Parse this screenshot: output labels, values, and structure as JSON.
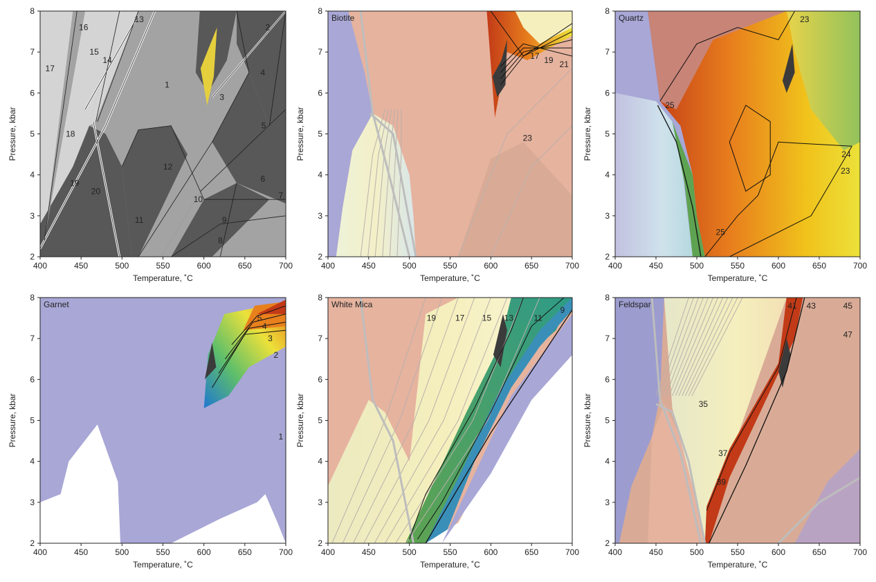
{
  "chart_data": [
    {
      "type": "heatmap",
      "title": "",
      "xlabel": "Temperature, ˚C",
      "ylabel": "Pressure, kbar",
      "xlim": [
        400,
        700
      ],
      "ylim": [
        2,
        8
      ],
      "xticks": [
        400,
        450,
        500,
        550,
        600,
        650,
        700
      ],
      "yticks": [
        2,
        3,
        4,
        5,
        6,
        7,
        8
      ],
      "style": "fields-gray",
      "labels": [
        {
          "text": "1",
          "x": 555,
          "y": 6.2
        },
        {
          "text": "2",
          "x": 678,
          "y": 7.6
        },
        {
          "text": "3",
          "x": 622,
          "y": 5.9
        },
        {
          "text": "4",
          "x": 672,
          "y": 6.5
        },
        {
          "text": "5",
          "x": 673,
          "y": 5.2
        },
        {
          "text": "6",
          "x": 672,
          "y": 3.9
        },
        {
          "text": "7",
          "x": 694,
          "y": 3.5
        },
        {
          "text": "8",
          "x": 620,
          "y": 2.4
        },
        {
          "text": "9",
          "x": 625,
          "y": 2.9
        },
        {
          "text": "10",
          "x": 593,
          "y": 3.4
        },
        {
          "text": "11",
          "x": 521,
          "y": 2.9
        },
        {
          "text": "12",
          "x": 556,
          "y": 4.2
        },
        {
          "text": "13",
          "x": 521,
          "y": 7.8
        },
        {
          "text": "14",
          "x": 482,
          "y": 6.8
        },
        {
          "text": "15",
          "x": 466,
          "y": 7.0
        },
        {
          "text": "16",
          "x": 453,
          "y": 7.6
        },
        {
          "text": "17",
          "x": 412,
          "y": 6.6
        },
        {
          "text": "18",
          "x": 437,
          "y": 5.0
        },
        {
          "text": "19",
          "x": 442,
          "y": 3.8
        },
        {
          "text": "20",
          "x": 468,
          "y": 3.6
        }
      ]
    },
    {
      "type": "heatmap",
      "title": "Biotite",
      "xlabel": "Temperature, ˚C",
      "ylabel": "Pressure, kbar",
      "xlim": [
        400,
        700
      ],
      "ylim": [
        2,
        8
      ],
      "xticks": [
        400,
        450,
        500,
        550,
        600,
        650,
        700
      ],
      "yticks": [
        2,
        3,
        4,
        5,
        6,
        7,
        8
      ],
      "style": "biotite",
      "labels": [
        {
          "text": "17",
          "x": 654,
          "y": 6.9
        },
        {
          "text": "19",
          "x": 671,
          "y": 6.8
        },
        {
          "text": "21",
          "x": 690,
          "y": 6.7
        },
        {
          "text": "23",
          "x": 645,
          "y": 4.9
        }
      ]
    },
    {
      "type": "heatmap",
      "title": "Quartz",
      "xlabel": "Temperature, ˚C",
      "ylabel": "Pressure, kbar",
      "xlim": [
        400,
        700
      ],
      "ylim": [
        2,
        8
      ],
      "xticks": [
        400,
        450,
        500,
        550,
        600,
        650,
        700
      ],
      "yticks": [
        2,
        3,
        4,
        5,
        6,
        7,
        8
      ],
      "style": "quartz",
      "labels": [
        {
          "text": "23",
          "x": 632,
          "y": 7.8
        },
        {
          "text": "25",
          "x": 467,
          "y": 5.7
        },
        {
          "text": "24",
          "x": 683,
          "y": 4.5
        },
        {
          "text": "23",
          "x": 682,
          "y": 4.1
        },
        {
          "text": "25",
          "x": 529,
          "y": 2.6
        }
      ]
    },
    {
      "type": "heatmap",
      "title": "Garnet",
      "xlabel": "Temperature, ˚C",
      "ylabel": "Pressure, kbar",
      "xlim": [
        400,
        700
      ],
      "ylim": [
        2,
        8
      ],
      "xticks": [
        400,
        450,
        500,
        550,
        600,
        650,
        700
      ],
      "yticks": [
        2,
        3,
        4,
        5,
        6,
        7,
        8
      ],
      "style": "garnet",
      "labels": [
        {
          "text": "5",
          "x": 668,
          "y": 7.5
        },
        {
          "text": "4",
          "x": 674,
          "y": 7.3
        },
        {
          "text": "3",
          "x": 681,
          "y": 7.0
        },
        {
          "text": "2",
          "x": 688,
          "y": 6.6
        },
        {
          "text": "1",
          "x": 694,
          "y": 4.6
        }
      ]
    },
    {
      "type": "heatmap",
      "title": "White Mica",
      "xlabel": "Temperature, ˚C",
      "ylabel": "Pressure, kbar",
      "xlim": [
        400,
        700
      ],
      "ylim": [
        2,
        8
      ],
      "xticks": [
        400,
        450,
        500,
        550,
        600,
        650,
        700
      ],
      "yticks": [
        2,
        3,
        4,
        5,
        6,
        7,
        8
      ],
      "style": "whitemica",
      "labels": [
        {
          "text": "19",
          "x": 527,
          "y": 7.5
        },
        {
          "text": "17",
          "x": 562,
          "y": 7.5
        },
        {
          "text": "15",
          "x": 595,
          "y": 7.5
        },
        {
          "text": "13",
          "x": 622,
          "y": 7.5
        },
        {
          "text": "11",
          "x": 658,
          "y": 7.5
        },
        {
          "text": "9",
          "x": 688,
          "y": 7.7
        }
      ]
    },
    {
      "type": "heatmap",
      "title": "Feldspar",
      "xlabel": "Temperature, ˚C",
      "ylabel": "Pressure, kbar",
      "xlim": [
        400,
        700
      ],
      "ylim": [
        2,
        8
      ],
      "xticks": [
        400,
        450,
        500,
        550,
        600,
        650,
        700
      ],
      "yticks": [
        2,
        3,
        4,
        5,
        6,
        7,
        8
      ],
      "style": "feldspar",
      "labels": [
        {
          "text": "41",
          "x": 617,
          "y": 7.8
        },
        {
          "text": "43",
          "x": 640,
          "y": 7.8
        },
        {
          "text": "45",
          "x": 685,
          "y": 7.8
        },
        {
          "text": "47",
          "x": 685,
          "y": 7.1
        },
        {
          "text": "35",
          "x": 508,
          "y": 5.4
        },
        {
          "text": "37",
          "x": 532,
          "y": 4.2
        },
        {
          "text": "39",
          "x": 530,
          "y": 3.5
        }
      ]
    }
  ],
  "colors": {
    "gray_light": "#d4d4d4",
    "gray_mid": "#a3a3a3",
    "gray_dark": "#585858",
    "highlight": "#e6cf3c",
    "pink": "#e6b39f",
    "lavender": "#a8a7d6",
    "pale_yellow": "#f5efbd",
    "red": "#c23a17",
    "orange": "#e8801d",
    "yellow": "#ece13a",
    "green": "#6fb466",
    "blue": "#3a8fd8",
    "contour": "#111111",
    "isopleth": "#b9b0ab"
  }
}
